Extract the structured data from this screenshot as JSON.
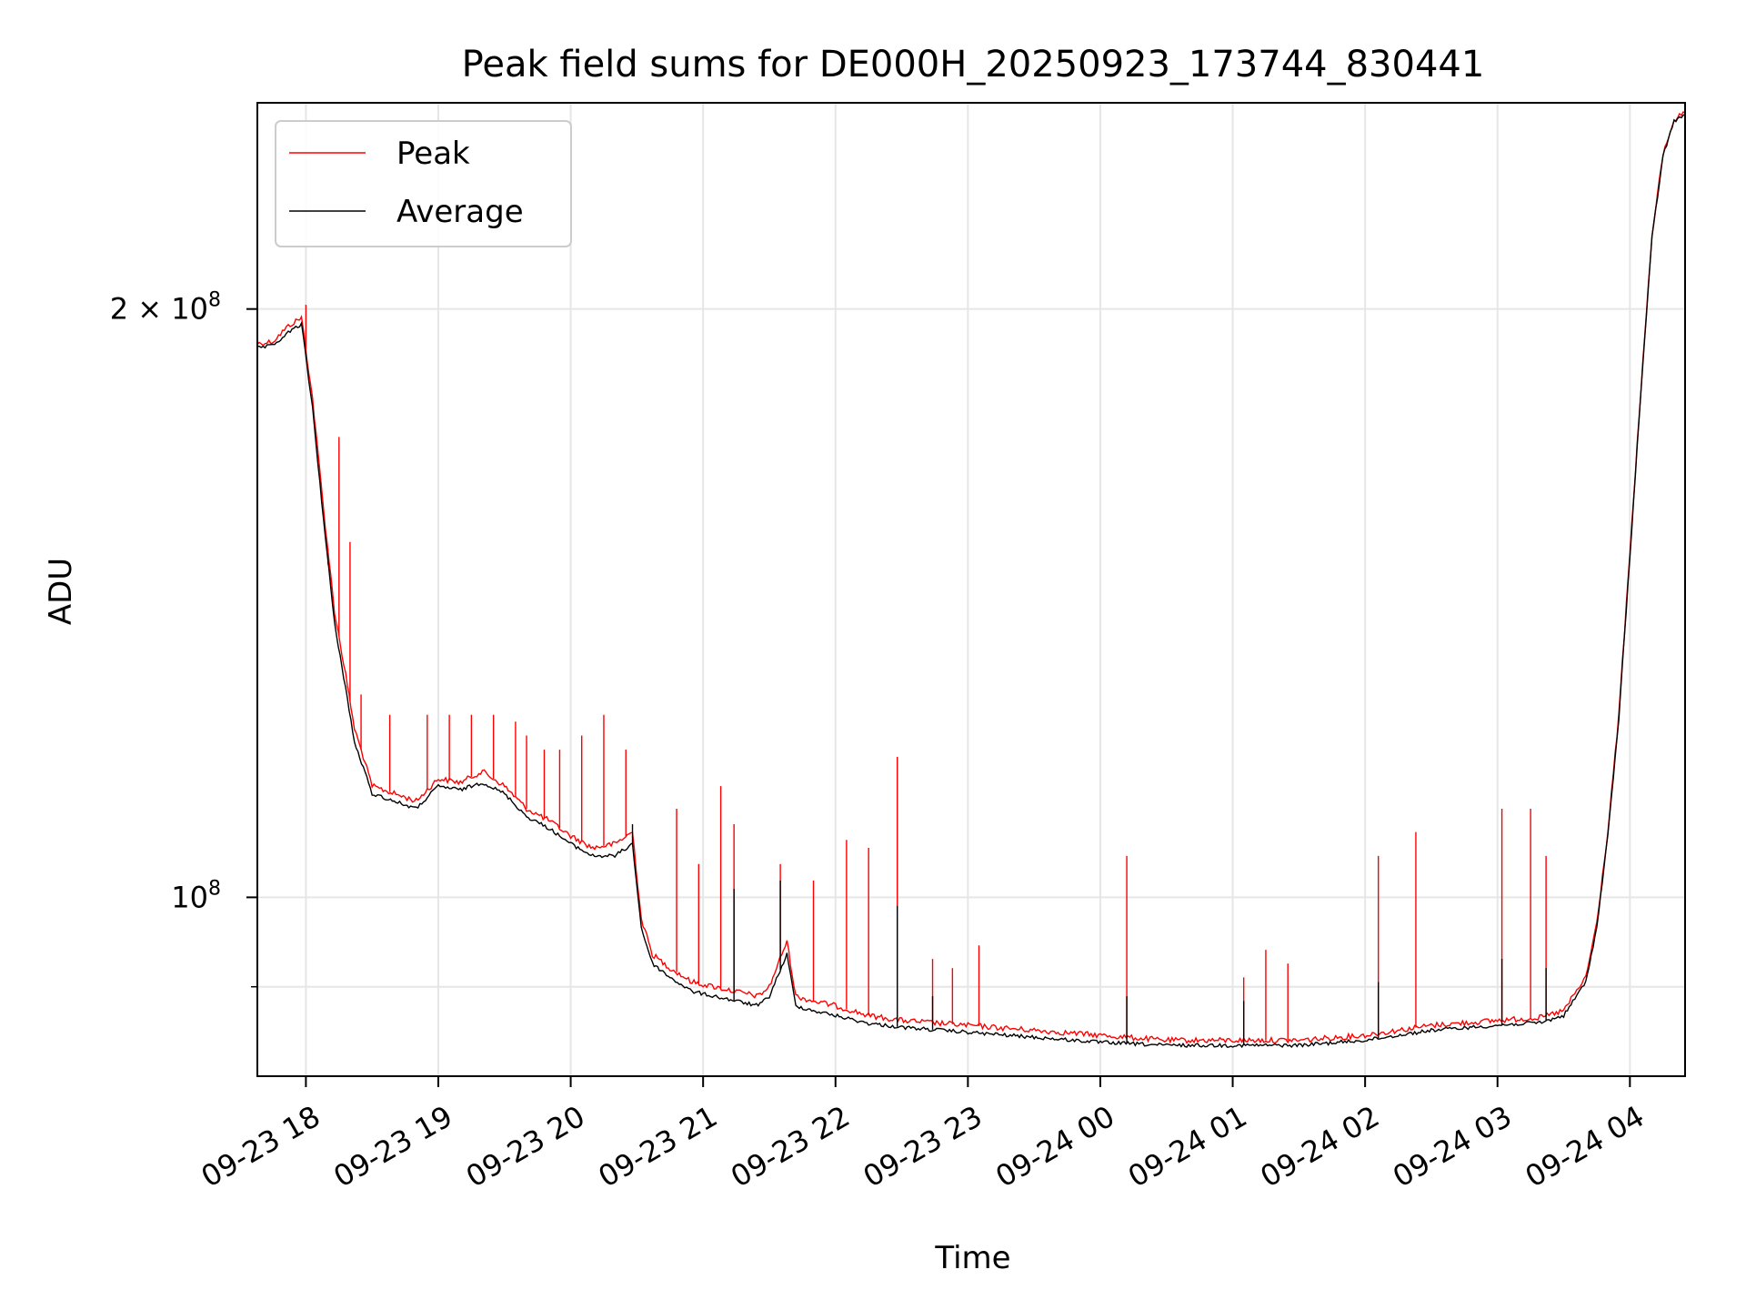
{
  "chart_data": {
    "type": "line",
    "title": "Peak field sums for DE000H_20250923_173744_830441",
    "xlabel": "Time",
    "ylabel": "ADU",
    "y_scale": "log",
    "xlim": [
      "2025-09-23 17:38",
      "2025-09-24 04:25"
    ],
    "ylim": [
      81000000,
      255000000
    ],
    "x_ticks": [
      {
        "t": "2025-09-23 18:00",
        "label": "09-23 18"
      },
      {
        "t": "2025-09-23 19:00",
        "label": "09-23 19"
      },
      {
        "t": "2025-09-23 20:00",
        "label": "09-23 20"
      },
      {
        "t": "2025-09-23 21:00",
        "label": "09-23 21"
      },
      {
        "t": "2025-09-23 22:00",
        "label": "09-23 22"
      },
      {
        "t": "2025-09-23 23:00",
        "label": "09-23 23"
      },
      {
        "t": "2025-09-24 00:00",
        "label": "09-24 00"
      },
      {
        "t": "2025-09-24 01:00",
        "label": "09-24 01"
      },
      {
        "t": "2025-09-24 02:00",
        "label": "09-24 02"
      },
      {
        "t": "2025-09-24 03:00",
        "label": "09-24 03"
      },
      {
        "t": "2025-09-24 04:00",
        "label": "09-24 04"
      }
    ],
    "y_ticks": [
      {
        "value": 200000000,
        "base": "2 × 10",
        "exp": "8"
      },
      {
        "value": 100000000,
        "base": "10",
        "exp": "8"
      }
    ],
    "y_minor_ticks": [
      90000000
    ],
    "grid": true,
    "legend_position": "top-left",
    "series": [
      {
        "name": "Peak",
        "color": "#ff0000",
        "x": [
          "2025-09-23 17:38",
          "2025-09-23 17:45",
          "2025-09-23 17:52",
          "2025-09-23 17:58",
          "2025-09-23 18:03",
          "2025-09-23 18:08",
          "2025-09-23 18:13",
          "2025-09-23 18:18",
          "2025-09-23 18:22",
          "2025-09-23 18:26",
          "2025-09-23 18:30",
          "2025-09-23 18:40",
          "2025-09-23 18:50",
          "2025-09-23 19:00",
          "2025-09-23 19:10",
          "2025-09-23 19:20",
          "2025-09-23 19:30",
          "2025-09-23 19:40",
          "2025-09-23 19:50",
          "2025-09-23 20:00",
          "2025-09-23 20:10",
          "2025-09-23 20:20",
          "2025-09-23 20:28",
          "2025-09-23 20:32",
          "2025-09-23 20:37",
          "2025-09-23 20:45",
          "2025-09-23 20:55",
          "2025-09-23 21:05",
          "2025-09-23 21:15",
          "2025-09-23 21:25",
          "2025-09-23 21:30",
          "2025-09-23 21:38",
          "2025-09-23 21:42",
          "2025-09-23 21:50",
          "2025-09-23 22:00",
          "2025-09-23 22:15",
          "2025-09-23 22:30",
          "2025-09-23 23:00",
          "2025-09-23 23:30",
          "2025-09-24 00:00",
          "2025-09-24 00:30",
          "2025-09-24 01:00",
          "2025-09-24 01:30",
          "2025-09-24 02:00",
          "2025-09-24 02:30",
          "2025-09-24 03:00",
          "2025-09-24 03:20",
          "2025-09-24 03:30",
          "2025-09-24 03:40",
          "2025-09-24 03:45",
          "2025-09-24 03:50",
          "2025-09-24 03:55",
          "2025-09-24 04:00",
          "2025-09-24 04:05",
          "2025-09-24 04:10",
          "2025-09-24 04:15",
          "2025-09-24 04:20",
          "2025-09-24 04:25"
        ],
        "y": [
          192000000,
          192500000,
          196000000,
          198000000,
          180000000,
          158000000,
          140000000,
          130000000,
          122000000,
          118000000,
          114000000,
          113000000,
          112000000,
          115000000,
          114500000,
          116000000,
          114000000,
          111000000,
          109500000,
          107500000,
          106000000,
          106500000,
          108000000,
          97500000,
          93500000,
          92000000,
          90500000,
          90000000,
          89500000,
          89000000,
          90000000,
          95000000,
          89000000,
          88500000,
          88000000,
          87000000,
          86500000,
          86000000,
          85500000,
          85000000,
          84500000,
          84500000,
          84500000,
          85000000,
          86000000,
          86500000,
          86800000,
          87500000,
          91000000,
          97000000,
          108000000,
          124000000,
          150000000,
          182000000,
          218000000,
          240000000,
          250000000,
          252000000
        ]
      },
      {
        "name": "Average",
        "color": "#000000",
        "x": [
          "2025-09-23 17:38",
          "2025-09-23 17:45",
          "2025-09-23 17:52",
          "2025-09-23 17:58",
          "2025-09-23 18:03",
          "2025-09-23 18:08",
          "2025-09-23 18:13",
          "2025-09-23 18:18",
          "2025-09-23 18:22",
          "2025-09-23 18:26",
          "2025-09-23 18:30",
          "2025-09-23 18:40",
          "2025-09-23 18:50",
          "2025-09-23 19:00",
          "2025-09-23 19:10",
          "2025-09-23 19:20",
          "2025-09-23 19:30",
          "2025-09-23 19:40",
          "2025-09-23 19:50",
          "2025-09-23 20:00",
          "2025-09-23 20:10",
          "2025-09-23 20:20",
          "2025-09-23 20:28",
          "2025-09-23 20:32",
          "2025-09-23 20:37",
          "2025-09-23 20:45",
          "2025-09-23 20:55",
          "2025-09-23 21:05",
          "2025-09-23 21:15",
          "2025-09-23 21:25",
          "2025-09-23 21:30",
          "2025-09-23 21:38",
          "2025-09-23 21:42",
          "2025-09-23 21:50",
          "2025-09-23 22:00",
          "2025-09-23 22:15",
          "2025-09-23 22:30",
          "2025-09-23 23:00",
          "2025-09-23 23:30",
          "2025-09-24 00:00",
          "2025-09-24 00:30",
          "2025-09-24 01:00",
          "2025-09-24 01:30",
          "2025-09-24 02:00",
          "2025-09-24 02:30",
          "2025-09-24 03:00",
          "2025-09-24 03:20",
          "2025-09-24 03:30",
          "2025-09-24 03:40",
          "2025-09-24 03:45",
          "2025-09-24 03:50",
          "2025-09-24 03:55",
          "2025-09-24 04:00",
          "2025-09-24 04:05",
          "2025-09-24 04:10",
          "2025-09-24 04:15",
          "2025-09-24 04:20",
          "2025-09-24 04:25"
        ],
        "y": [
          191000000,
          191500000,
          194500000,
          196500000,
          178000000,
          156000000,
          138000000,
          128000000,
          120000000,
          116500000,
          113000000,
          112000000,
          111000000,
          114000000,
          113500000,
          114500000,
          113000000,
          110000000,
          108500000,
          106500000,
          105000000,
          105000000,
          106500000,
          96500000,
          92500000,
          91000000,
          89500000,
          89000000,
          88500000,
          88000000,
          89000000,
          93500000,
          88000000,
          87500000,
          87000000,
          86200000,
          85800000,
          85300000,
          84800000,
          84300000,
          84000000,
          84000000,
          84000000,
          84500000,
          85500000,
          86000000,
          86300000,
          87000000,
          90500000,
          96500000,
          107500000,
          123500000,
          149500000,
          181500000,
          217500000,
          239500000,
          249500000,
          251500000
        ]
      }
    ],
    "spikes": [
      {
        "name": "Peak",
        "color": "#ff0000",
        "x": [
          "2025-09-23 18:00",
          "2025-09-23 18:10",
          "2025-09-23 18:15",
          "2025-09-23 18:20",
          "2025-09-23 18:25",
          "2025-09-23 18:38",
          "2025-09-23 18:55",
          "2025-09-23 19:05",
          "2025-09-23 19:15",
          "2025-09-23 19:25",
          "2025-09-23 19:35",
          "2025-09-23 19:40",
          "2025-09-23 19:48",
          "2025-09-23 19:55",
          "2025-09-23 20:05",
          "2025-09-23 20:15",
          "2025-09-23 20:25",
          "2025-09-23 20:48",
          "2025-09-23 20:58",
          "2025-09-23 21:08",
          "2025-09-23 21:14",
          "2025-09-23 21:35",
          "2025-09-23 21:50",
          "2025-09-23 22:05",
          "2025-09-23 22:15",
          "2025-09-23 22:28",
          "2025-09-23 22:44",
          "2025-09-23 22:53",
          "2025-09-23 23:05",
          "2025-09-24 00:12",
          "2025-09-24 01:05",
          "2025-09-24 01:15",
          "2025-09-24 01:25",
          "2025-09-24 02:06",
          "2025-09-24 02:23",
          "2025-09-24 03:02",
          "2025-09-24 03:15",
          "2025-09-24 03:22"
        ],
        "y": [
          201000000,
          148000000,
          172000000,
          152000000,
          127000000,
          124000000,
          124000000,
          124000000,
          124000000,
          124000000,
          123000000,
          121000000,
          119000000,
          119000000,
          121000000,
          124000000,
          119000000,
          111000000,
          104000000,
          114000000,
          109000000,
          104000000,
          102000000,
          107000000,
          106000000,
          118000000,
          93000000,
          92000000,
          94500000,
          105000000,
          91000000,
          94000000,
          92500000,
          105000000,
          108000000,
          111000000,
          111000000,
          105000000
        ]
      },
      {
        "name": "Average",
        "color": "#000000",
        "x": [
          "2025-09-23 20:28",
          "2025-09-23 21:14",
          "2025-09-23 21:35",
          "2025-09-23 22:28",
          "2025-09-23 22:44",
          "2025-09-24 00:12",
          "2025-09-24 01:05",
          "2025-09-24 02:06",
          "2025-09-24 03:02",
          "2025-09-24 03:22"
        ],
        "y": [
          109000000,
          101000000,
          102000000,
          99000000,
          89000000,
          89000000,
          88500000,
          90500000,
          93000000,
          92000000
        ]
      }
    ]
  }
}
